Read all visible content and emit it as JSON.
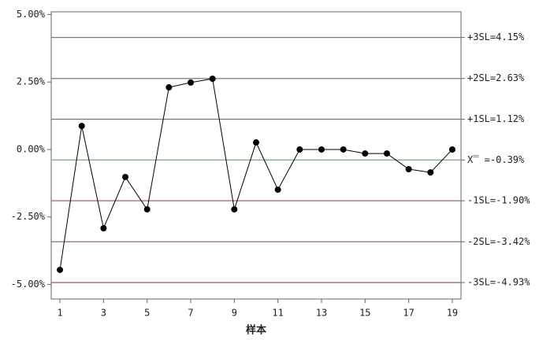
{
  "chart_data": {
    "type": "line",
    "xlabel": "样本",
    "x": [
      1,
      2,
      3,
      4,
      5,
      6,
      7,
      8,
      9,
      10,
      11,
      12,
      13,
      14,
      15,
      16,
      17,
      18,
      19
    ],
    "values": [
      -4.46,
      0.87,
      -2.92,
      -1.02,
      -2.22,
      2.3,
      2.48,
      2.62,
      -2.22,
      0.26,
      -1.49,
      0,
      0,
      0,
      -0.15,
      -0.15,
      -0.73,
      -0.85,
      0
    ],
    "color": "#000000",
    "xlim": [
      0.6,
      19.4
    ],
    "ylim": [
      -5.54,
      5.1
    ],
    "xticks": [
      1,
      3,
      5,
      7,
      9,
      11,
      13,
      15,
      17,
      19
    ],
    "yticks": [
      {
        "value": 5,
        "label": "5.00%"
      },
      {
        "value": 2.5,
        "label": "2.50%"
      },
      {
        "value": 0,
        "label": "0.00%"
      },
      {
        "value": -2.5,
        "label": "-2.50%"
      },
      {
        "value": -5,
        "label": "-5.00%"
      }
    ],
    "reference_lines": [
      {
        "value": 4.15,
        "label": "+3SL=4.15%",
        "color": "#9a6a6a"
      },
      {
        "value": 2.63,
        "label": "+2SL=2.63%",
        "color": "#9a6a6a"
      },
      {
        "value": 1.12,
        "label": "+1SL=1.12%",
        "color": "#9a6a6a"
      },
      {
        "value": -0.39,
        "label": "X̿ =-0.39%",
        "color": "#6cbf6c"
      },
      {
        "value": -1.9,
        "label": "-1SL=-1.90%",
        "color": "#9a6a6a"
      },
      {
        "value": -3.42,
        "label": "-2SL=-3.42%",
        "color": "#9a6a6a"
      },
      {
        "value": -4.93,
        "label": "-3SL=-4.93%",
        "color": "#9a6a6a"
      }
    ]
  }
}
